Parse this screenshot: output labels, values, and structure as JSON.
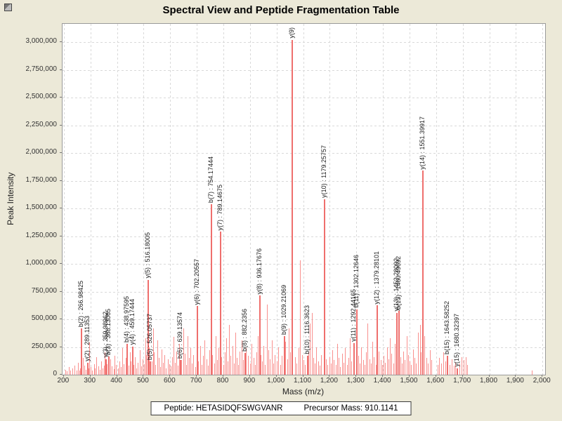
{
  "window": {
    "background": "#ece9d8"
  },
  "footer": {
    "peptide": "Peptide: HETASIDQFSWGVANR",
    "precursor": "Precursor Mass: 910.1141"
  },
  "chart_data": {
    "type": "bar",
    "title": "Spectral View and Peptide Fragmentation Table",
    "xlabel": "Mass (m/z)",
    "ylabel": "Peak Intensity",
    "xlim": [
      195,
      2010
    ],
    "ylim": [
      0,
      3165000
    ],
    "grid": "dashed",
    "legend": "none",
    "colors": {
      "background": "#ece9d8",
      "plot_background": "#ffffff",
      "grid": "#d9d9d9",
      "peak": "#f9908e",
      "peak_annotated": "#ef6f6d",
      "label_text": "#1a1a1a"
    },
    "x_ticks": [
      {
        "v": 200,
        "label": "200"
      },
      {
        "v": 300,
        "label": "300"
      },
      {
        "v": 400,
        "label": "400"
      },
      {
        "v": 500,
        "label": "500"
      },
      {
        "v": 600,
        "label": "600"
      },
      {
        "v": 700,
        "label": "700"
      },
      {
        "v": 800,
        "label": "800"
      },
      {
        "v": 900,
        "label": "900"
      },
      {
        "v": 1000,
        "label": "1,000"
      },
      {
        "v": 1100,
        "label": "1,100"
      },
      {
        "v": 1200,
        "label": "1,200"
      },
      {
        "v": 1300,
        "label": "1,300"
      },
      {
        "v": 1400,
        "label": "1,400"
      },
      {
        "v": 1500,
        "label": "1,500"
      },
      {
        "v": 1600,
        "label": "1,600"
      },
      {
        "v": 1700,
        "label": "1,700"
      },
      {
        "v": 1800,
        "label": "1,800"
      },
      {
        "v": 1900,
        "label": "1,900"
      },
      {
        "v": 2000,
        "label": "2,000"
      }
    ],
    "y_ticks": [
      {
        "v": 0,
        "label": "0"
      },
      {
        "v": 250000,
        "label": "250,000"
      },
      {
        "v": 500000,
        "label": "500,000"
      },
      {
        "v": 750000,
        "label": "750,000"
      },
      {
        "v": 1000000,
        "label": "1,000,000"
      },
      {
        "v": 1250000,
        "label": "1,250,000"
      },
      {
        "v": 1500000,
        "label": "1,500,000"
      },
      {
        "v": 1750000,
        "label": "1,750,000"
      },
      {
        "v": 2000000,
        "label": "2,000,000"
      },
      {
        "v": 2250000,
        "label": "2,250,000"
      },
      {
        "v": 2500000,
        "label": "2,500,000"
      },
      {
        "v": 2750000,
        "label": "2,750,000"
      },
      {
        "v": 3000000,
        "label": "3,000,000"
      }
    ],
    "annotated_peaks": [
      {
        "ion": "b(2)",
        "label": "b(2) : 266.98425",
        "mz": 266.98425,
        "intensity": 420000
      },
      {
        "ion": "y(2)",
        "label": "y(2) : 289.11353",
        "mz": 289.11353,
        "intensity": 110000
      },
      {
        "ion": "y(3)",
        "label": "y(3) : 359.98962",
        "mz": 359.98962,
        "intensity": 140000
      },
      {
        "ion": "b(3)",
        "label": "b(3) : 368.13065",
        "mz": 368.13065,
        "intensity": 165000
      },
      {
        "ion": "b(4)",
        "label": "b(4) : 438.97595",
        "mz": 438.97595,
        "intensity": 280000
      },
      {
        "ion": "y(4)",
        "label": "y(4) : 459.17444",
        "mz": 459.17444,
        "intensity": 255000
      },
      {
        "ion": "y(5)",
        "label": "y(5) : 516.18005",
        "mz": 516.18005,
        "intensity": 855000
      },
      {
        "ion": "b(5)",
        "label": "b(5) : 526.05737",
        "mz": 526.05737,
        "intensity": 120000
      },
      {
        "ion": "b(6)",
        "label": "b(6) : 639.13574",
        "mz": 639.13574,
        "intensity": 130000
      },
      {
        "ion": "y(6)",
        "label": "y(6) : 702.20557",
        "mz": 702.20557,
        "intensity": 620000
      },
      {
        "ion": "b(7)",
        "label": "b(7) : 754.17444",
        "mz": 754.17444,
        "intensity": 1540000
      },
      {
        "ion": "y(7)",
        "label": "y(7) : 789.14675",
        "mz": 789.14675,
        "intensity": 1290000
      },
      {
        "ion": "b(8)",
        "label": "b(8) : 882.2356",
        "mz": 882.2356,
        "intensity": 195000
      },
      {
        "ion": "y(8)",
        "label": "y(8) : 936.17676",
        "mz": 936.17676,
        "intensity": 715000
      },
      {
        "ion": "b(9)",
        "label": "b(9) : 1029.21069",
        "mz": 1029.21069,
        "intensity": 345000
      },
      {
        "ion": "y(9)",
        "label": "y(9)",
        "mz": 1059,
        "intensity": 3020000
      },
      {
        "ion": "b(10)",
        "label": "b(10) : 1116.3623",
        "mz": 1116.3623,
        "intensity": 170000
      },
      {
        "ion": "y(10)",
        "label": "y(10) : 1179.25757",
        "mz": 1179.25757,
        "intensity": 1585000
      },
      {
        "ion": "y(11)",
        "label": "y(11) : 1292.44165",
        "mz": 1292.44165,
        "intensity": 285000
      },
      {
        "ion": "b(11)",
        "label": "b(11) : 1302.12646",
        "mz": 1302.12646,
        "intensity": 590000
      },
      {
        "ion": "y(12)",
        "label": "y(12) : 1379.28101",
        "mz": 1379.28101,
        "intensity": 625000
      },
      {
        "ion": "y(13)",
        "label": "y(13) : 1452.28092",
        "mz": 1452.28092,
        "intensity": 560000
      },
      {
        "ion": "b(13)",
        "label": "b(13) : 1460.49692",
        "mz": 1460.49692,
        "intensity": 575000
      },
      {
        "ion": "y(14)",
        "label": "y(14) : 1551.39917",
        "mz": 1551.39917,
        "intensity": 1840000
      },
      {
        "ion": "b(15)",
        "label": "b(15) : 1643.58252",
        "mz": 1643.58252,
        "intensity": 170000
      },
      {
        "ion": "y(15)",
        "label": "y(15) : 1680.32397",
        "mz": 1680.32397,
        "intensity": 60000
      }
    ],
    "noise_peaks": [
      [
        208,
        45000
      ],
      [
        213,
        30000
      ],
      [
        219,
        70000
      ],
      [
        226,
        38000
      ],
      [
        233,
        55000
      ],
      [
        241,
        85000
      ],
      [
        248,
        40000
      ],
      [
        254,
        110000
      ],
      [
        259,
        35000
      ],
      [
        263,
        60000
      ],
      [
        272,
        150000
      ],
      [
        277,
        80000
      ],
      [
        283,
        45000
      ],
      [
        293,
        60000
      ],
      [
        297,
        290000
      ],
      [
        303,
        70000
      ],
      [
        308,
        40000
      ],
      [
        314,
        95000
      ],
      [
        319,
        55000
      ],
      [
        324,
        160000
      ],
      [
        330,
        75000
      ],
      [
        336,
        45000
      ],
      [
        341,
        120000
      ],
      [
        347,
        60000
      ],
      [
        352,
        85000
      ],
      [
        356,
        200000
      ],
      [
        363,
        95000
      ],
      [
        371,
        60000
      ],
      [
        377,
        140000
      ],
      [
        382,
        75000
      ],
      [
        388,
        50000
      ],
      [
        393,
        170000
      ],
      [
        398,
        90000
      ],
      [
        404,
        55000
      ],
      [
        409,
        120000
      ],
      [
        415,
        70000
      ],
      [
        421,
        240000
      ],
      [
        427,
        95000
      ],
      [
        433,
        150000
      ],
      [
        444,
        80000
      ],
      [
        449,
        200000
      ],
      [
        453,
        120000
      ],
      [
        463,
        90000
      ],
      [
        468,
        160000
      ],
      [
        474,
        60000
      ],
      [
        479,
        110000
      ],
      [
        486,
        220000
      ],
      [
        491,
        75000
      ],
      [
        497,
        140000
      ],
      [
        503,
        95000
      ],
      [
        508,
        330000
      ],
      [
        512,
        180000
      ],
      [
        521,
        250000
      ],
      [
        531,
        120000
      ],
      [
        536,
        420000
      ],
      [
        541,
        200000
      ],
      [
        546,
        90000
      ],
      [
        552,
        310000
      ],
      [
        557,
        150000
      ],
      [
        563,
        70000
      ],
      [
        568,
        230000
      ],
      [
        574,
        110000
      ],
      [
        580,
        180000
      ],
      [
        586,
        60000
      ],
      [
        592,
        140000
      ],
      [
        597,
        95000
      ],
      [
        603,
        75000
      ],
      [
        608,
        160000
      ],
      [
        613,
        340000
      ],
      [
        618,
        110000
      ],
      [
        624,
        210000
      ],
      [
        629,
        80000
      ],
      [
        634,
        280000
      ],
      [
        644,
        130000
      ],
      [
        650,
        420000
      ],
      [
        655,
        190000
      ],
      [
        661,
        90000
      ],
      [
        666,
        350000
      ],
      [
        672,
        150000
      ],
      [
        678,
        240000
      ],
      [
        683,
        100000
      ],
      [
        689,
        180000
      ],
      [
        695,
        70000
      ],
      [
        707,
        120000
      ],
      [
        713,
        260000
      ],
      [
        719,
        90000
      ],
      [
        724,
        170000
      ],
      [
        731,
        310000
      ],
      [
        737,
        140000
      ],
      [
        742,
        80000
      ],
      [
        748,
        220000
      ],
      [
        760,
        180000
      ],
      [
        766,
        100000
      ],
      [
        771,
        350000
      ],
      [
        777,
        130000
      ],
      [
        783,
        240000
      ],
      [
        794,
        160000
      ],
      [
        801,
        90000
      ],
      [
        806,
        200000
      ],
      [
        812,
        330000
      ],
      [
        818,
        120000
      ],
      [
        823,
        450000
      ],
      [
        829,
        170000
      ],
      [
        835,
        260000
      ],
      [
        840,
        100000
      ],
      [
        846,
        380000
      ],
      [
        851,
        150000
      ],
      [
        857,
        90000
      ],
      [
        863,
        210000
      ],
      [
        869,
        310000
      ],
      [
        875,
        130000
      ],
      [
        887,
        240000
      ],
      [
        893,
        170000
      ],
      [
        903,
        100000
      ],
      [
        908,
        280000
      ],
      [
        914,
        150000
      ],
      [
        920,
        90000
      ],
      [
        926,
        200000
      ],
      [
        931,
        350000
      ],
      [
        942,
        180000
      ],
      [
        947,
        120000
      ],
      [
        953,
        260000
      ],
      [
        958,
        90000
      ],
      [
        965,
        630000
      ],
      [
        971,
        220000
      ],
      [
        977,
        140000
      ],
      [
        983,
        310000
      ],
      [
        989,
        100000
      ],
      [
        995,
        180000
      ],
      [
        1002,
        120000
      ],
      [
        1008,
        250000
      ],
      [
        1014,
        90000
      ],
      [
        1020,
        170000
      ],
      [
        1035,
        300000
      ],
      [
        1041,
        140000
      ],
      [
        1047,
        420000
      ],
      [
        1053,
        200000
      ],
      [
        1070,
        160000
      ],
      [
        1076,
        100000
      ],
      [
        1083,
        240000
      ],
      [
        1090,
        1030000
      ],
      [
        1096,
        180000
      ],
      [
        1103,
        130000
      ],
      [
        1109,
        90000
      ],
      [
        1121,
        200000
      ],
      [
        1127,
        460000
      ],
      [
        1133,
        560000
      ],
      [
        1139,
        150000
      ],
      [
        1146,
        100000
      ],
      [
        1151,
        250000
      ],
      [
        1157,
        120000
      ],
      [
        1163,
        80000
      ],
      [
        1169,
        180000
      ],
      [
        1186,
        140000
      ],
      [
        1192,
        90000
      ],
      [
        1199,
        160000
      ],
      [
        1205,
        100000
      ],
      [
        1211,
        220000
      ],
      [
        1217,
        130000
      ],
      [
        1223,
        90000
      ],
      [
        1229,
        280000
      ],
      [
        1235,
        150000
      ],
      [
        1241,
        70000
      ],
      [
        1247,
        190000
      ],
      [
        1253,
        110000
      ],
      [
        1259,
        240000
      ],
      [
        1265,
        90000
      ],
      [
        1271,
        150000
      ],
      [
        1277,
        330000
      ],
      [
        1283,
        120000
      ],
      [
        1289,
        200000
      ],
      [
        1308,
        170000
      ],
      [
        1314,
        100000
      ],
      [
        1320,
        250000
      ],
      [
        1326,
        130000
      ],
      [
        1332,
        90000
      ],
      [
        1338,
        200000
      ],
      [
        1344,
        460000
      ],
      [
        1350,
        140000
      ],
      [
        1356,
        100000
      ],
      [
        1362,
        300000
      ],
      [
        1368,
        160000
      ],
      [
        1374,
        90000
      ],
      [
        1386,
        210000
      ],
      [
        1392,
        130000
      ],
      [
        1398,
        90000
      ],
      [
        1404,
        170000
      ],
      [
        1410,
        110000
      ],
      [
        1416,
        250000
      ],
      [
        1422,
        140000
      ],
      [
        1428,
        330000
      ],
      [
        1434,
        190000
      ],
      [
        1440,
        100000
      ],
      [
        1446,
        280000
      ],
      [
        1466,
        160000
      ],
      [
        1472,
        100000
      ],
      [
        1478,
        210000
      ],
      [
        1484,
        130000
      ],
      [
        1490,
        350000
      ],
      [
        1496,
        180000
      ],
      [
        1502,
        120000
      ],
      [
        1508,
        90000
      ],
      [
        1514,
        230000
      ],
      [
        1520,
        150000
      ],
      [
        1526,
        100000
      ],
      [
        1533,
        380000
      ],
      [
        1540,
        450000
      ],
      [
        1545,
        200000
      ],
      [
        1558,
        350000
      ],
      [
        1564,
        150000
      ],
      [
        1570,
        100000
      ],
      [
        1577,
        220000
      ],
      [
        1583,
        130000
      ],
      [
        1607,
        90000
      ],
      [
        1613,
        150000
      ],
      [
        1620,
        100000
      ],
      [
        1628,
        200000
      ],
      [
        1635,
        120000
      ],
      [
        1652,
        90000
      ],
      [
        1660,
        140000
      ],
      [
        1668,
        80000
      ],
      [
        1674,
        110000
      ],
      [
        1690,
        100000
      ],
      [
        1697,
        160000
      ],
      [
        1705,
        130000
      ],
      [
        1712,
        160000
      ],
      [
        1718,
        90000
      ],
      [
        1962,
        35000
      ]
    ]
  }
}
